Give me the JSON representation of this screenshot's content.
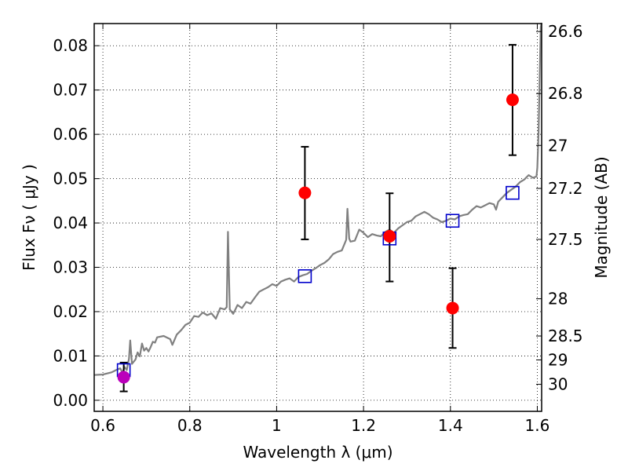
{
  "chart_data": {
    "type": "scatter",
    "xlabel": "Wavelength  λ (μm)",
    "ylabel": "Flux  Fν  ( μJy )",
    "ylabel_right": "Magnitude (AB)",
    "xlim": [
      0.58,
      1.61
    ],
    "ylim": [
      -0.0025,
      0.085
    ],
    "grid": true,
    "x_ticks": [
      0.6,
      0.8,
      1.0,
      1.2,
      1.4,
      1.6
    ],
    "x_tick_labels": [
      "0.6",
      "0.8",
      "1",
      "1.2",
      "1.4",
      "1.6"
    ],
    "y_ticks": [
      0.0,
      0.01,
      0.02,
      0.03,
      0.04,
      0.05,
      0.06,
      0.07,
      0.08
    ],
    "y_tick_labels": [
      "0.00",
      "0.01",
      "0.02",
      "0.03",
      "0.04",
      "0.05",
      "0.06",
      "0.07",
      "0.08"
    ],
    "right_ticks": [
      {
        "label": "26.6",
        "flux": 0.0832
      },
      {
        "label": "26.8",
        "flux": 0.0692
      },
      {
        "label": "27",
        "flux": 0.0575
      },
      {
        "label": "27.2",
        "flux": 0.0478
      },
      {
        "label": "27.5",
        "flux": 0.0363
      },
      {
        "label": "28",
        "flux": 0.0229
      },
      {
        "label": "28.5",
        "flux": 0.0145
      },
      {
        "label": "29",
        "flux": 0.0091
      },
      {
        "label": "30",
        "flux": 0.0036
      }
    ],
    "model_spectrum": {
      "color": "#808080",
      "points": [
        [
          0.58,
          0.0057
        ],
        [
          0.6,
          0.0058
        ],
        [
          0.62,
          0.0063
        ],
        [
          0.63,
          0.0068
        ],
        [
          0.64,
          0.0072
        ],
        [
          0.645,
          0.0062
        ],
        [
          0.65,
          0.0075
        ],
        [
          0.655,
          0.0068
        ],
        [
          0.66,
          0.0094
        ],
        [
          0.663,
          0.0135
        ],
        [
          0.667,
          0.0082
        ],
        [
          0.675,
          0.0092
        ],
        [
          0.68,
          0.0108
        ],
        [
          0.685,
          0.0099
        ],
        [
          0.69,
          0.0128
        ],
        [
          0.695,
          0.0112
        ],
        [
          0.7,
          0.0118
        ],
        [
          0.705,
          0.011
        ],
        [
          0.71,
          0.012
        ],
        [
          0.715,
          0.0132
        ],
        [
          0.72,
          0.013
        ],
        [
          0.725,
          0.0142
        ],
        [
          0.74,
          0.0145
        ],
        [
          0.755,
          0.0138
        ],
        [
          0.76,
          0.0125
        ],
        [
          0.77,
          0.0148
        ],
        [
          0.78,
          0.0158
        ],
        [
          0.79,
          0.017
        ],
        [
          0.8,
          0.0175
        ],
        [
          0.81,
          0.019
        ],
        [
          0.82,
          0.0188
        ],
        [
          0.83,
          0.0198
        ],
        [
          0.84,
          0.0192
        ],
        [
          0.85,
          0.0196
        ],
        [
          0.86,
          0.0184
        ],
        [
          0.87,
          0.0208
        ],
        [
          0.88,
          0.0205
        ],
        [
          0.885,
          0.021
        ],
        [
          0.888,
          0.038
        ],
        [
          0.892,
          0.0205
        ],
        [
          0.9,
          0.0195
        ],
        [
          0.91,
          0.0215
        ],
        [
          0.92,
          0.0208
        ],
        [
          0.93,
          0.0222
        ],
        [
          0.94,
          0.0218
        ],
        [
          0.95,
          0.0232
        ],
        [
          0.96,
          0.0245
        ],
        [
          0.97,
          0.025
        ],
        [
          0.98,
          0.0255
        ],
        [
          0.99,
          0.0262
        ],
        [
          1.0,
          0.0258
        ],
        [
          1.01,
          0.0268
        ],
        [
          1.02,
          0.0272
        ],
        [
          1.03,
          0.0275
        ],
        [
          1.04,
          0.0268
        ],
        [
          1.05,
          0.0278
        ],
        [
          1.06,
          0.0282
        ],
        [
          1.07,
          0.0285
        ],
        [
          1.08,
          0.0292
        ],
        [
          1.09,
          0.0298
        ],
        [
          1.1,
          0.0305
        ],
        [
          1.11,
          0.031
        ],
        [
          1.12,
          0.0318
        ],
        [
          1.13,
          0.033
        ],
        [
          1.14,
          0.0335
        ],
        [
          1.15,
          0.0338
        ],
        [
          1.155,
          0.035
        ],
        [
          1.16,
          0.0362
        ],
        [
          1.163,
          0.0432
        ],
        [
          1.167,
          0.0365
        ],
        [
          1.17,
          0.0358
        ],
        [
          1.18,
          0.036
        ],
        [
          1.19,
          0.0385
        ],
        [
          1.2,
          0.0378
        ],
        [
          1.21,
          0.0368
        ],
        [
          1.22,
          0.0375
        ],
        [
          1.23,
          0.0372
        ],
        [
          1.24,
          0.037
        ],
        [
          1.25,
          0.038
        ],
        [
          1.26,
          0.0385
        ],
        [
          1.27,
          0.0378
        ],
        [
          1.28,
          0.0388
        ],
        [
          1.29,
          0.0395
        ],
        [
          1.3,
          0.0402
        ],
        [
          1.31,
          0.0405
        ],
        [
          1.32,
          0.0415
        ],
        [
          1.33,
          0.042
        ],
        [
          1.34,
          0.0425
        ],
        [
          1.35,
          0.042
        ],
        [
          1.36,
          0.0412
        ],
        [
          1.37,
          0.0408
        ],
        [
          1.38,
          0.0402
        ],
        [
          1.39,
          0.0405
        ],
        [
          1.4,
          0.041
        ],
        [
          1.41,
          0.0408
        ],
        [
          1.42,
          0.0415
        ],
        [
          1.43,
          0.0418
        ],
        [
          1.44,
          0.042
        ],
        [
          1.45,
          0.043
        ],
        [
          1.46,
          0.0438
        ],
        [
          1.47,
          0.0435
        ],
        [
          1.48,
          0.044
        ],
        [
          1.49,
          0.0445
        ],
        [
          1.5,
          0.0442
        ],
        [
          1.505,
          0.043
        ],
        [
          1.51,
          0.0448
        ],
        [
          1.52,
          0.0458
        ],
        [
          1.53,
          0.0468
        ],
        [
          1.54,
          0.0475
        ],
        [
          1.55,
          0.0482
        ],
        [
          1.56,
          0.0492
        ],
        [
          1.57,
          0.0498
        ],
        [
          1.58,
          0.0508
        ],
        [
          1.59,
          0.0502
        ],
        [
          1.598,
          0.0505
        ],
        [
          1.6,
          0.0525
        ],
        [
          1.603,
          0.0605
        ],
        [
          1.606,
          0.0758
        ],
        [
          1.608,
          0.0842
        ],
        [
          1.61,
          0.0852
        ]
      ]
    },
    "model_points": {
      "marker": "open-square",
      "color": "#0000cc",
      "points": [
        {
          "x": 0.648,
          "y": 0.0068
        },
        {
          "x": 1.065,
          "y": 0.028
        },
        {
          "x": 1.26,
          "y": 0.0365
        },
        {
          "x": 1.405,
          "y": 0.0405
        },
        {
          "x": 1.543,
          "y": 0.0468
        }
      ]
    },
    "observed_points": {
      "marker": "filled-circle",
      "color": "#ff0000",
      "points": [
        {
          "x": 1.065,
          "y": 0.0468,
          "ylow": 0.0363,
          "yhigh": 0.0572
        },
        {
          "x": 1.26,
          "y": 0.037,
          "ylow": 0.0268,
          "yhigh": 0.0467
        },
        {
          "x": 1.405,
          "y": 0.0208,
          "ylow": 0.0118,
          "yhigh": 0.0298
        },
        {
          "x": 1.543,
          "y": 0.0678,
          "ylow": 0.0553,
          "yhigh": 0.0802
        }
      ]
    },
    "optical_point": {
      "marker": "filled-circle",
      "color": "#bb00bb",
      "x": 0.648,
      "y": 0.0052,
      "ylow": 0.002,
      "yhigh": 0.0085
    }
  }
}
